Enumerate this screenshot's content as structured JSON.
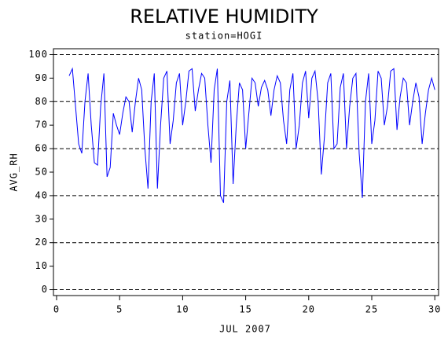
{
  "chart_data": {
    "type": "line",
    "title": "RELATIVE HUMIDITY",
    "subtitle": "station=HOGI",
    "x_label": "JUL 2007",
    "y_label": "AVG_RH",
    "x": [
      1,
      1.25,
      1.5,
      1.75,
      2,
      2.25,
      2.5,
      2.75,
      3,
      3.25,
      3.5,
      3.75,
      4,
      4.25,
      4.5,
      4.75,
      5,
      5.25,
      5.5,
      5.75,
      6,
      6.25,
      6.5,
      6.75,
      7,
      7.25,
      7.5,
      7.75,
      8,
      8.25,
      8.5,
      8.75,
      9,
      9.25,
      9.5,
      9.75,
      10,
      10.25,
      10.5,
      10.75,
      11,
      11.25,
      11.5,
      11.75,
      12,
      12.25,
      12.5,
      12.75,
      13,
      13.25,
      13.5,
      13.75,
      14,
      14.25,
      14.5,
      14.75,
      15,
      15.25,
      15.5,
      15.75,
      16,
      16.25,
      16.5,
      16.75,
      17,
      17.25,
      17.5,
      17.75,
      18,
      18.25,
      18.5,
      18.75,
      19,
      19.25,
      19.5,
      19.75,
      20,
      20.25,
      20.5,
      20.75,
      21,
      21.25,
      21.5,
      21.75,
      22,
      22.25,
      22.5,
      22.75,
      23,
      23.25,
      23.5,
      23.75,
      24,
      24.25,
      24.5,
      24.75,
      25,
      25.25,
      25.5,
      25.75,
      26,
      26.25,
      26.5,
      26.75,
      27,
      27.25,
      27.5,
      27.75,
      28,
      28.25,
      28.5,
      28.75,
      29,
      29.25,
      29.5,
      29.75,
      30
    ],
    "series": [
      {
        "name": "AVG_RH",
        "color": "#0000ff",
        "values": [
          91,
          94,
          78,
          62,
          58,
          80,
          92,
          70,
          54,
          53,
          78,
          92,
          48,
          52,
          75,
          70,
          66,
          75,
          82,
          80,
          67,
          80,
          90,
          85,
          60,
          43,
          80,
          92,
          43,
          70,
          90,
          93,
          62,
          72,
          88,
          92,
          70,
          80,
          93,
          94,
          76,
          85,
          92,
          90,
          70,
          54,
          85,
          94,
          40,
          37,
          80,
          89,
          45,
          70,
          88,
          85,
          60,
          75,
          90,
          88,
          78,
          86,
          89,
          85,
          74,
          85,
          91,
          88,
          72,
          62,
          85,
          92,
          60,
          70,
          88,
          93,
          73,
          90,
          93,
          80,
          49,
          65,
          88,
          92,
          60,
          62,
          86,
          92,
          60,
          78,
          90,
          92,
          58,
          39,
          80,
          92,
          62,
          72,
          93,
          90,
          70,
          78,
          93,
          94,
          68,
          82,
          90,
          88,
          70,
          80,
          88,
          82,
          62,
          75,
          85,
          90,
          85
        ]
      }
    ],
    "xlim": [
      -0.25,
      30.3
    ],
    "xticks": [
      0,
      5,
      10,
      15,
      20,
      25,
      30
    ],
    "ylim": [
      -2.5,
      102.5
    ],
    "yticks": [
      0,
      10,
      20,
      30,
      40,
      50,
      60,
      70,
      80,
      90,
      100
    ],
    "grid_lines": [
      0,
      20,
      40,
      60,
      80,
      100
    ]
  }
}
